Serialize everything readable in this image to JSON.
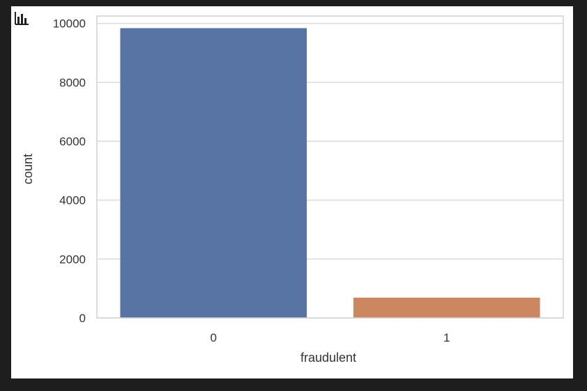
{
  "toolbar": {
    "icon": "bar-chart-icon"
  },
  "chart_data": {
    "type": "bar",
    "categories": [
      "0",
      "1"
    ],
    "values": [
      9840,
      690
    ],
    "xlabel": "fraudulent",
    "ylabel": "count",
    "ylim": [
      0,
      10000
    ],
    "yticks": [
      0,
      2000,
      4000,
      6000,
      8000,
      10000
    ],
    "grid": true,
    "colors": [
      "#5874a5",
      "#cc8760"
    ]
  }
}
